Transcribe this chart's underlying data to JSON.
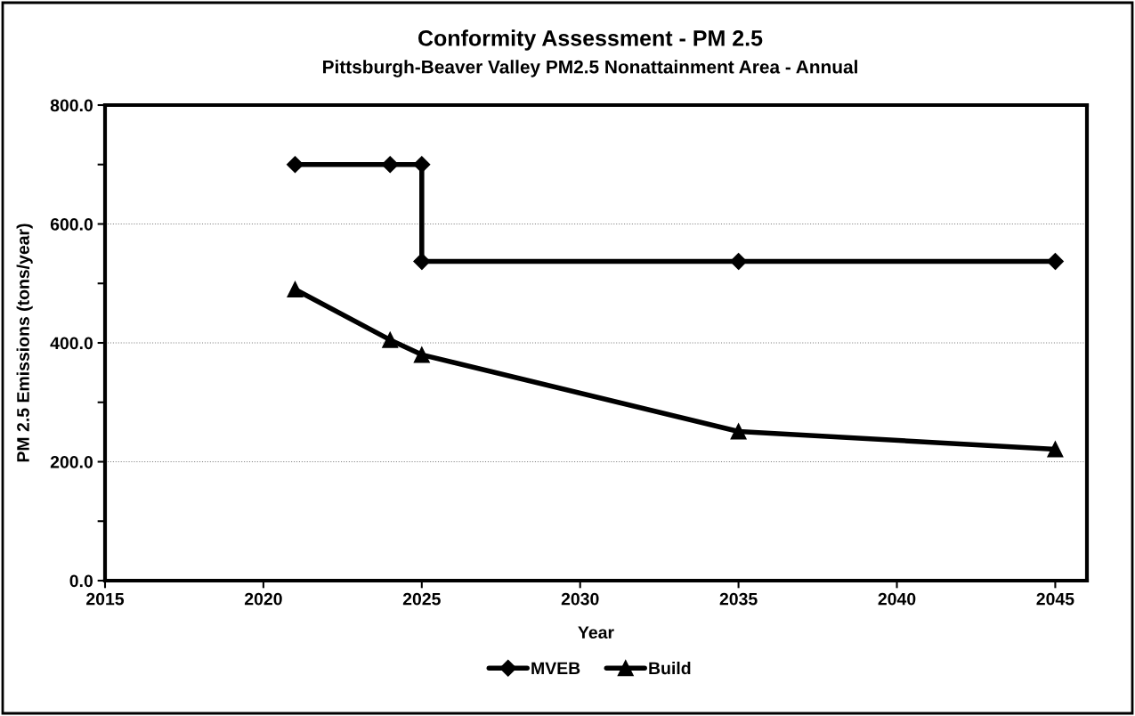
{
  "chart_data": {
    "type": "line",
    "title": "Conformity Assessment - PM 2.5",
    "subtitle": "Pittsburgh-Beaver Valley PM2.5 Nonattainment Area - Annual",
    "xlabel": "Year",
    "ylabel": "PM 2.5 Emissions (tons/year)",
    "series": [
      {
        "name": "MVEB",
        "color": "#000000",
        "marker": "diamond",
        "x": [
          2021,
          2024,
          2025,
          2025,
          2035,
          2045
        ],
        "values": [
          700,
          700,
          700,
          537,
          537,
          537
        ]
      },
      {
        "name": "Build",
        "color": "#000000",
        "marker": "triangle",
        "x": [
          2021,
          2024,
          2025,
          2035,
          2045
        ],
        "values": [
          490,
          405,
          380,
          251,
          221
        ]
      }
    ],
    "xlim": [
      2015,
      2046
    ],
    "xticks": [
      2015,
      2020,
      2025,
      2030,
      2035,
      2040,
      2045
    ],
    "ylim": [
      0,
      800
    ],
    "yticks": [
      {
        "value": 0,
        "label": "0.0"
      },
      {
        "value": 100,
        "label": null
      },
      {
        "value": 200,
        "label": "200.0"
      },
      {
        "value": 300,
        "label": null
      },
      {
        "value": 400,
        "label": "400.0"
      },
      {
        "value": 500,
        "label": null
      },
      {
        "value": 600,
        "label": "600.0"
      },
      {
        "value": 700,
        "label": null
      },
      {
        "value": 800,
        "label": "800.0"
      }
    ],
    "grid": "y",
    "legend": "bottom",
    "line_style": "solid"
  }
}
